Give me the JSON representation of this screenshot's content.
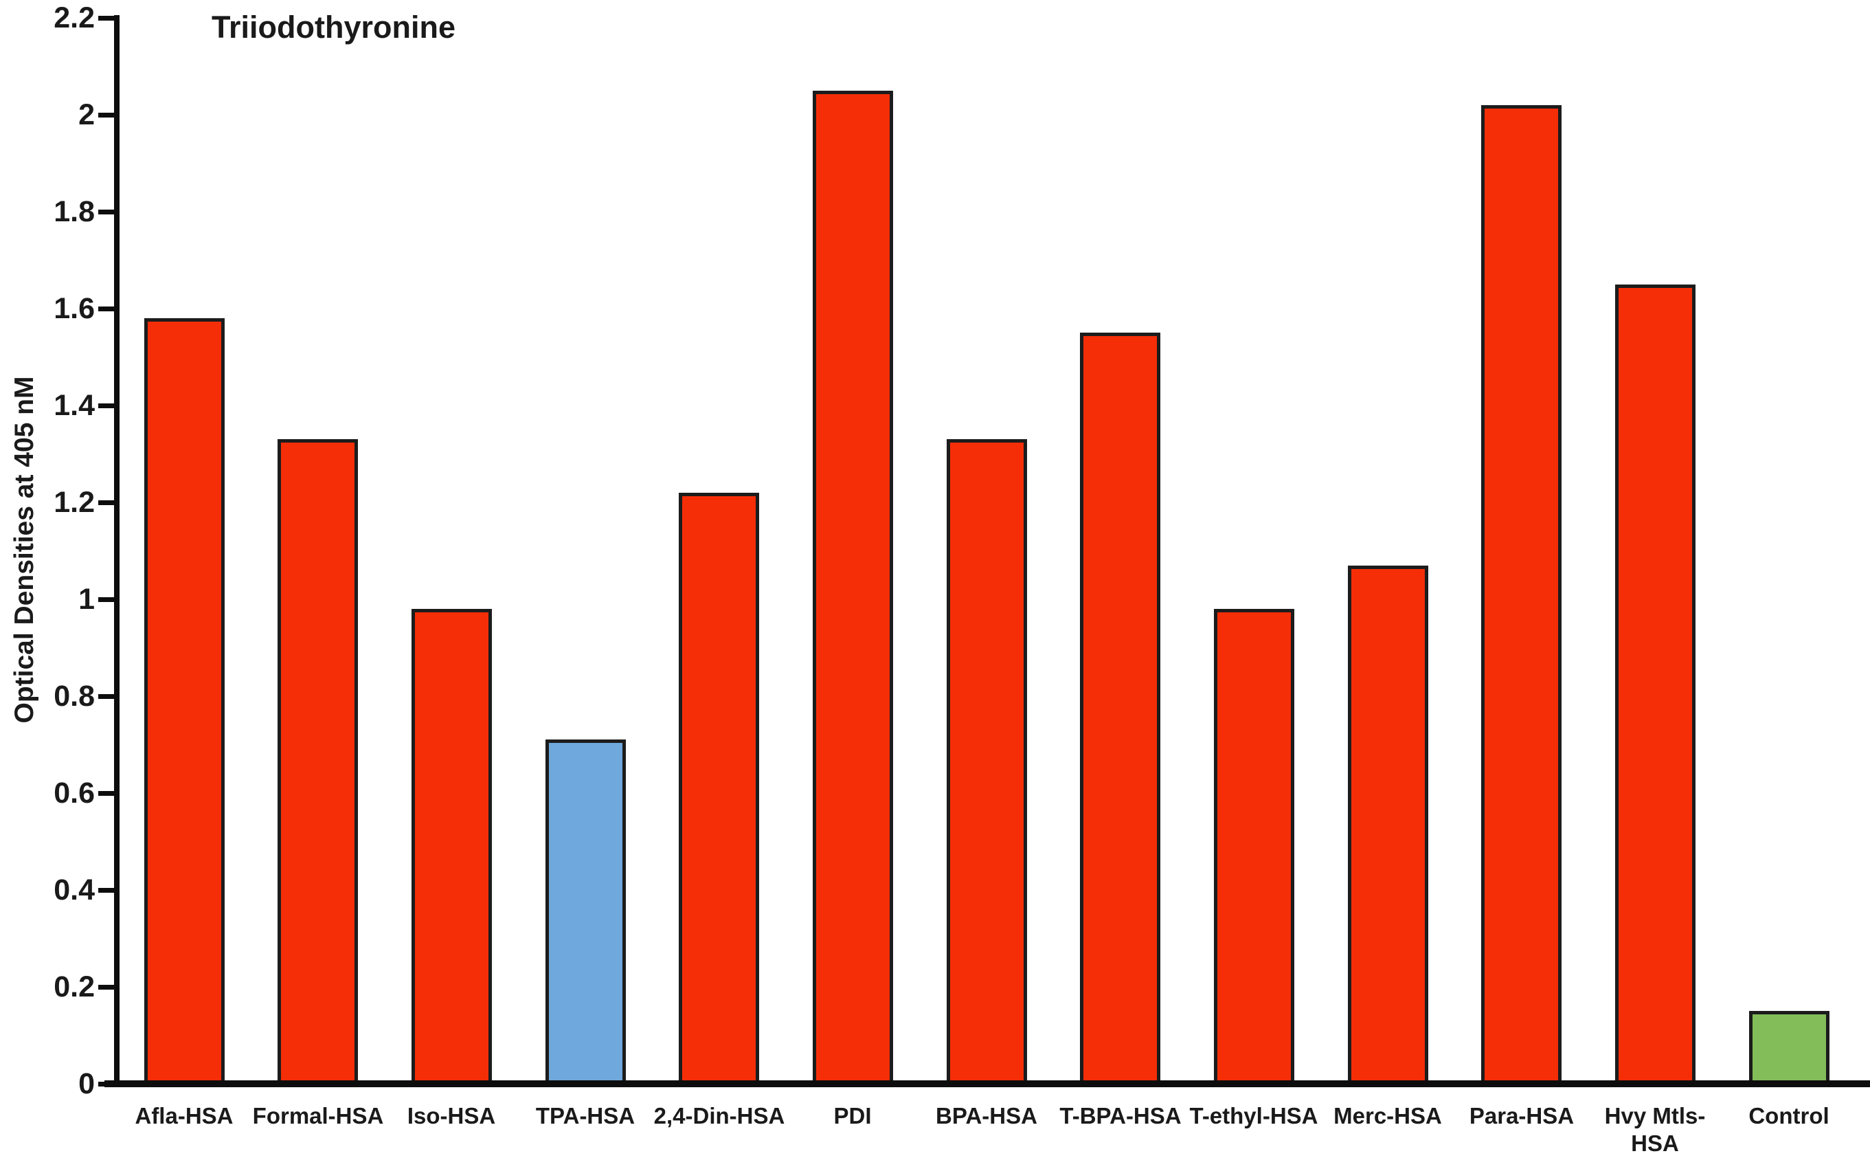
{
  "chart_data": {
    "type": "bar",
    "title": "Triiodothyronine",
    "xlabel": "",
    "ylabel": "Optical Densities at 405 nM",
    "ylim": [
      0,
      2.2
    ],
    "ytick_step": 0.2,
    "ytick_labels": [
      "2.2",
      "2",
      "1.8",
      "1.6",
      "1.4",
      "1.2",
      "1",
      "0.8",
      "0.6",
      "0.4",
      "0.2",
      "0"
    ],
    "grid": false,
    "legend": "none",
    "categories": [
      "Afla-HSA",
      "Formal-HSA",
      "Iso-HSA",
      "TPA-HSA",
      "2,4-Din-HSA",
      "PDI",
      "BPA-HSA",
      "T-BPA-HSA",
      "T-ethyl-HSA",
      "Merc-HSA",
      "Para-HSA",
      "Hvy Mtls-\nHSA",
      "Control"
    ],
    "values": [
      1.58,
      1.33,
      0.98,
      0.71,
      1.22,
      2.05,
      1.33,
      1.55,
      0.98,
      1.07,
      2.02,
      1.65,
      0.15
    ],
    "bar_colors": [
      "#F52E08",
      "#F52E08",
      "#F52E08",
      "#6FA8DC",
      "#F52E08",
      "#F52E08",
      "#F52E08",
      "#F52E08",
      "#F52E08",
      "#F52E08",
      "#F52E08",
      "#F52E08",
      "#82BD59"
    ],
    "colors": {
      "red_bar": "#F52E08",
      "blue_bar": "#6FA8DC",
      "green_bar": "#82BD59",
      "outline": "#1c1c1c",
      "axis": "#0d0d0d",
      "text": "#1a1a1a",
      "background": "#ffffff"
    }
  }
}
